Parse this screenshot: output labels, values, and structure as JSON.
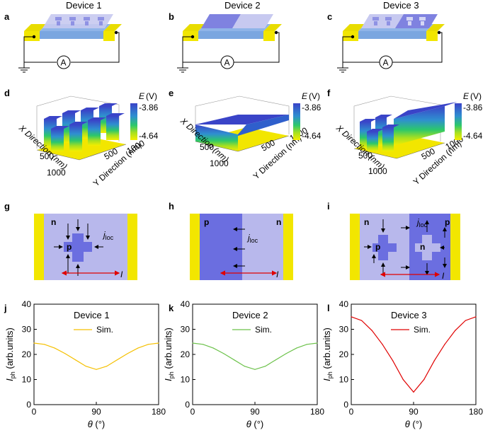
{
  "figure": {
    "panel_labels": [
      "a",
      "b",
      "c",
      "d",
      "e",
      "f",
      "g",
      "h",
      "i",
      "j",
      "k",
      "l"
    ],
    "device_titles": [
      "Device 1",
      "Device 2",
      "Device 3"
    ],
    "ammeter_symbol": "A",
    "colorbar": {
      "label_symbol": "E",
      "label_unit": "(V)",
      "max": "-3.86",
      "min": "-4.64",
      "color_top": "#3a44c8",
      "color_bottom": "#f5ee00"
    },
    "surface_axes": {
      "x_label": "X Direction (nm)",
      "y_label": "Y Direction (nm)",
      "x_ticks": [
        "500",
        "1000"
      ],
      "y_ticks": [
        "500",
        "1000"
      ]
    },
    "schematic": {
      "n_label": "n",
      "p_label": "p",
      "j_label": "j",
      "j_sub": "loc",
      "current_label": "I",
      "colors": {
        "n_region": "#b8b8ec",
        "p_region": "#6b6ee0",
        "electrode": "#f2e600",
        "arrow_current": "#e00000"
      }
    }
  },
  "chart_data": [
    {
      "type": "line",
      "panel": "j",
      "legend_title": "Device 1",
      "series": [
        {
          "name": "Sim.",
          "color": "#f5c000",
          "x": [
            0,
            15,
            30,
            45,
            60,
            75,
            90,
            105,
            120,
            135,
            150,
            165,
            180
          ],
          "values": [
            24.5,
            24.0,
            22.5,
            20.3,
            17.8,
            15.3,
            14.0,
            15.3,
            17.8,
            20.3,
            22.5,
            24.0,
            24.5
          ]
        }
      ],
      "xlabel": "θ (°)",
      "ylabel": "I_ph (arb.units)",
      "x_ticks": [
        "0",
        "90",
        "180"
      ],
      "y_ticks": [
        "0",
        "10",
        "20",
        "30",
        "40"
      ],
      "xlim": [
        0,
        180
      ],
      "ylim": [
        0,
        40
      ]
    },
    {
      "type": "line",
      "panel": "k",
      "legend_title": "Device 2",
      "series": [
        {
          "name": "Sim.",
          "color": "#6cc24a",
          "x": [
            0,
            15,
            30,
            45,
            60,
            75,
            90,
            105,
            120,
            135,
            150,
            165,
            180
          ],
          "values": [
            24.5,
            24.0,
            22.5,
            20.3,
            17.8,
            15.3,
            14.0,
            15.3,
            17.8,
            20.3,
            22.5,
            24.0,
            24.5
          ]
        }
      ],
      "xlabel": "θ (°)",
      "ylabel": "I_ph (arb.units)",
      "x_ticks": [
        "0",
        "90",
        "180"
      ],
      "y_ticks": [
        "0",
        "10",
        "20",
        "30",
        "40"
      ],
      "xlim": [
        0,
        180
      ],
      "ylim": [
        0,
        40
      ]
    },
    {
      "type": "line",
      "panel": "l",
      "legend_title": "Device 3",
      "series": [
        {
          "name": "Sim.",
          "color": "#e00000",
          "x": [
            0,
            15,
            30,
            45,
            60,
            75,
            90,
            105,
            120,
            135,
            150,
            165,
            180
          ],
          "values": [
            35.0,
            33.5,
            29.5,
            24.0,
            17.5,
            10.0,
            5.0,
            10.0,
            17.5,
            24.0,
            29.5,
            33.5,
            35.0
          ]
        }
      ],
      "xlabel": "θ (°)",
      "ylabel": "I_ph (arb.units)",
      "x_ticks": [
        "0",
        "90",
        "180"
      ],
      "y_ticks": [
        "0",
        "10",
        "20",
        "30",
        "40"
      ],
      "xlim": [
        0,
        180
      ],
      "ylim": [
        0,
        40
      ]
    }
  ]
}
